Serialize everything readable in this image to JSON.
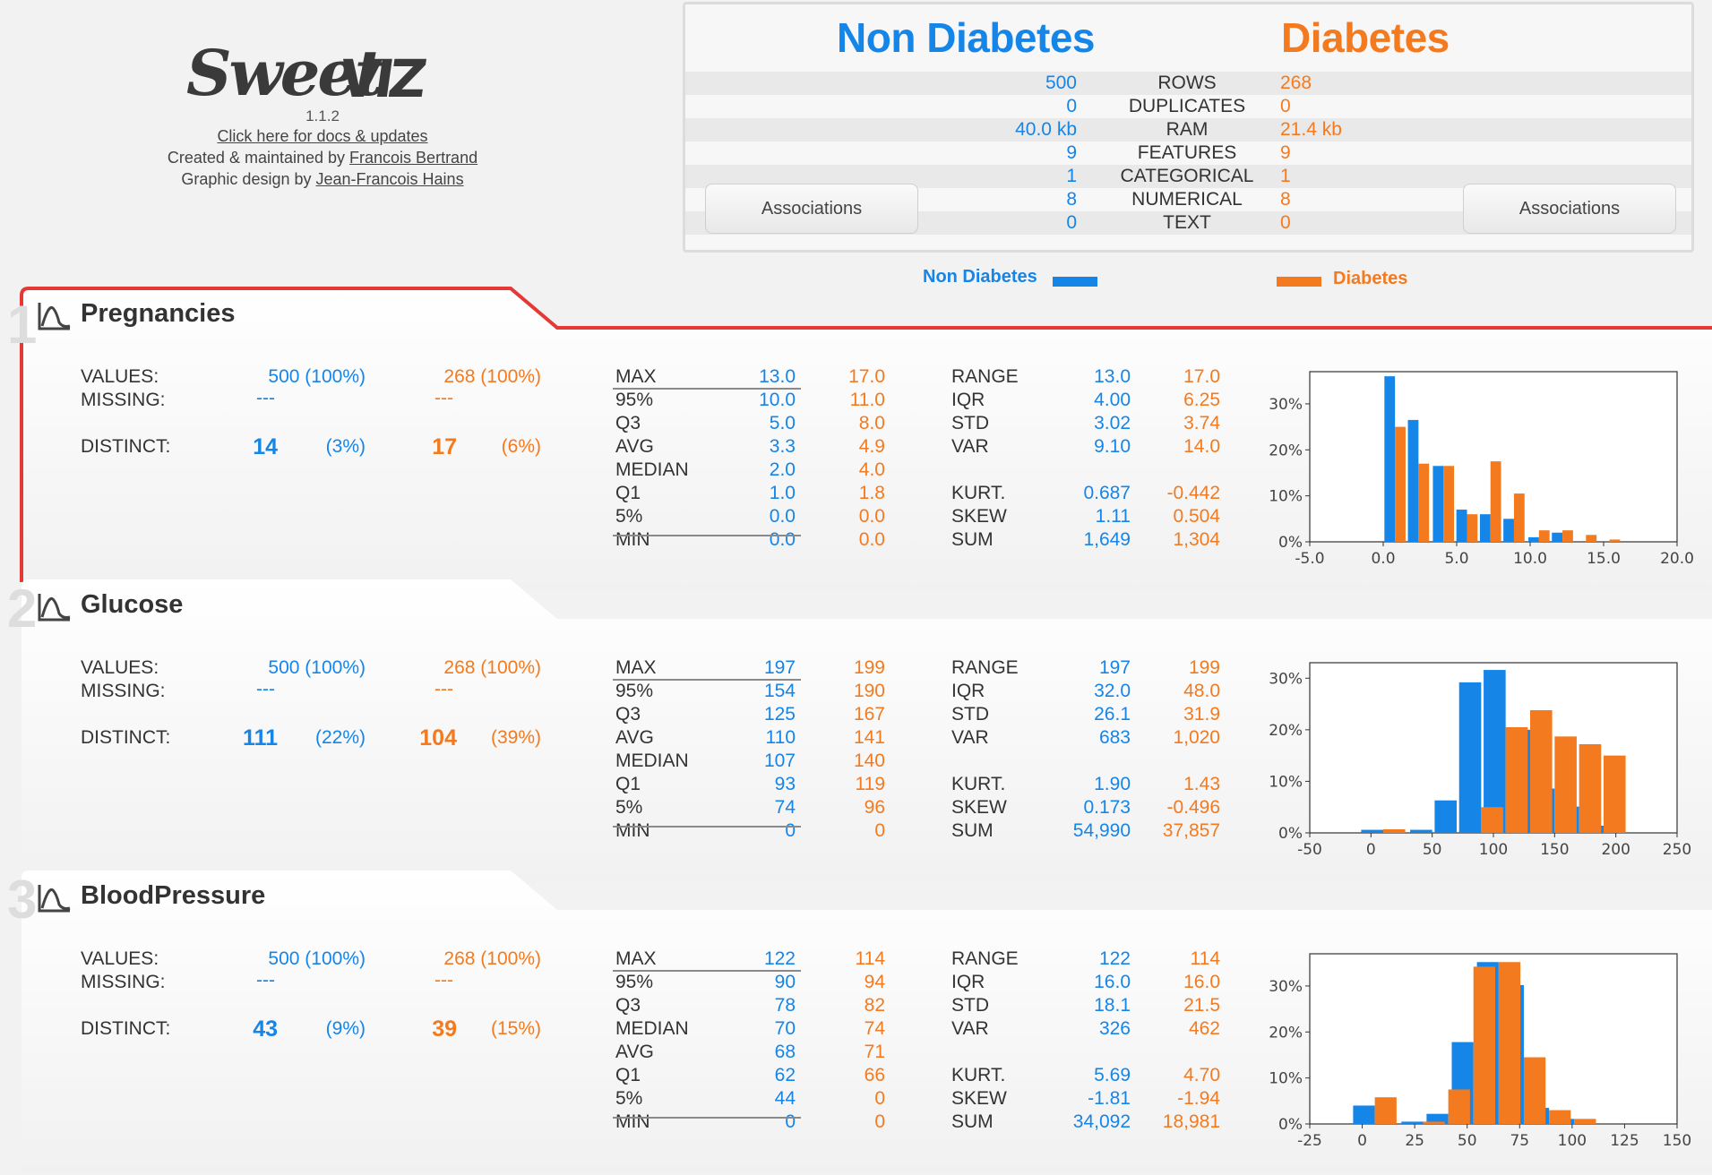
{
  "header": {
    "version": "1.1.2",
    "docs_link": "Click here for docs & updates",
    "created_prefix": "Created & maintained by ",
    "created_author": "Francois Bertrand",
    "design_prefix": "Graphic design by ",
    "design_author": "Jean-Francois Hains"
  },
  "summary": {
    "left_title": "Non Diabetes",
    "right_title": "Diabetes",
    "rows": [
      {
        "label": "ROWS",
        "left": "500",
        "right": "268"
      },
      {
        "label": "DUPLICATES",
        "left": "0",
        "right": "0"
      },
      {
        "label": "RAM",
        "left": "40.0 kb",
        "right": "21.4 kb"
      },
      {
        "label": "FEATURES",
        "left": "9",
        "right": "9"
      },
      {
        "label": "CATEGORICAL",
        "left": "1",
        "right": "1"
      },
      {
        "label": "NUMERICAL",
        "left": "8",
        "right": "8"
      },
      {
        "label": "TEXT",
        "left": "0",
        "right": "0"
      }
    ],
    "assoc_left": "Associations",
    "assoc_right": "Associations"
  },
  "legend": {
    "left": "Non Diabetes",
    "right": "Diabetes"
  },
  "colors": {
    "left": "#1585e8",
    "right": "#f47a1f",
    "highlight": "#e53935"
  },
  "features": [
    {
      "index": "1",
      "name": "Pregnancies",
      "values_label": "VALUES:",
      "missing_label": "MISSING:",
      "distinct_label": "DISTINCT:",
      "values_l": "500 (100%)",
      "values_r": "268 (100%)",
      "missing_l": "---",
      "missing_r": "---",
      "distinct_l": "14",
      "distinct_l_pct": "(3%)",
      "distinct_r": "17",
      "distinct_r_pct": "(6%)",
      "quant": [
        {
          "label": "MAX",
          "l": "13.0",
          "r": "17.0"
        },
        {
          "label": "95%",
          "l": "10.0",
          "r": "11.0"
        },
        {
          "label": "Q3",
          "l": "5.0",
          "r": "8.0"
        },
        {
          "label": "AVG",
          "l": "3.3",
          "r": "4.9"
        },
        {
          "label": "MEDIAN",
          "l": "2.0",
          "r": "4.0"
        },
        {
          "label": "Q1",
          "l": "1.0",
          "r": "1.8"
        },
        {
          "label": "5%",
          "l": "0.0",
          "r": "0.0"
        },
        {
          "label": "MIN",
          "l": "0.0",
          "r": "0.0"
        }
      ],
      "stats1": [
        {
          "label": "RANGE",
          "l": "13.0",
          "r": "17.0"
        },
        {
          "label": "IQR",
          "l": "4.00",
          "r": "6.25"
        },
        {
          "label": "STD",
          "l": "3.02",
          "r": "3.74"
        },
        {
          "label": "VAR",
          "l": "9.10",
          "r": "14.0"
        }
      ],
      "stats2": [
        {
          "label": "KURT.",
          "l": "0.687",
          "r": "-0.442"
        },
        {
          "label": "SKEW",
          "l": "1.11",
          "r": "0.504"
        },
        {
          "label": "SUM",
          "l": "1,649",
          "r": "1,304"
        }
      ]
    },
    {
      "index": "2",
      "name": "Glucose",
      "values_label": "VALUES:",
      "missing_label": "MISSING:",
      "distinct_label": "DISTINCT:",
      "values_l": "500 (100%)",
      "values_r": "268 (100%)",
      "missing_l": "---",
      "missing_r": "---",
      "distinct_l": "111",
      "distinct_l_pct": "(22%)",
      "distinct_r": "104",
      "distinct_r_pct": "(39%)",
      "quant": [
        {
          "label": "MAX",
          "l": "197",
          "r": "199"
        },
        {
          "label": "95%",
          "l": "154",
          "r": "190"
        },
        {
          "label": "Q3",
          "l": "125",
          "r": "167"
        },
        {
          "label": "AVG",
          "l": "110",
          "r": "141"
        },
        {
          "label": "MEDIAN",
          "l": "107",
          "r": "140"
        },
        {
          "label": "Q1",
          "l": "93",
          "r": "119"
        },
        {
          "label": "5%",
          "l": "74",
          "r": "96"
        },
        {
          "label": "MIN",
          "l": "0",
          "r": "0"
        }
      ],
      "stats1": [
        {
          "label": "RANGE",
          "l": "197",
          "r": "199"
        },
        {
          "label": "IQR",
          "l": "32.0",
          "r": "48.0"
        },
        {
          "label": "STD",
          "l": "26.1",
          "r": "31.9"
        },
        {
          "label": "VAR",
          "l": "683",
          "r": "1,020"
        }
      ],
      "stats2": [
        {
          "label": "KURT.",
          "l": "1.90",
          "r": "1.43"
        },
        {
          "label": "SKEW",
          "l": "0.173",
          "r": "-0.496"
        },
        {
          "label": "SUM",
          "l": "54,990",
          "r": "37,857"
        }
      ]
    },
    {
      "index": "3",
      "name": "BloodPressure",
      "values_label": "VALUES:",
      "missing_label": "MISSING:",
      "distinct_label": "DISTINCT:",
      "values_l": "500 (100%)",
      "values_r": "268 (100%)",
      "missing_l": "---",
      "missing_r": "---",
      "distinct_l": "43",
      "distinct_l_pct": "(9%)",
      "distinct_r": "39",
      "distinct_r_pct": "(15%)",
      "quant": [
        {
          "label": "MAX",
          "l": "122",
          "r": "114"
        },
        {
          "label": "95%",
          "l": "90",
          "r": "94"
        },
        {
          "label": "Q3",
          "l": "78",
          "r": "82"
        },
        {
          "label": "MEDIAN",
          "l": "70",
          "r": "74"
        },
        {
          "label": "AVG",
          "l": "68",
          "r": "71"
        },
        {
          "label": "Q1",
          "l": "62",
          "r": "66"
        },
        {
          "label": "5%",
          "l": "44",
          "r": "0"
        },
        {
          "label": "MIN",
          "l": "0",
          "r": "0"
        }
      ],
      "stats1": [
        {
          "label": "RANGE",
          "l": "122",
          "r": "114"
        },
        {
          "label": "IQR",
          "l": "16.0",
          "r": "16.0"
        },
        {
          "label": "STD",
          "l": "18.1",
          "r": "21.5"
        },
        {
          "label": "VAR",
          "l": "326",
          "r": "462"
        }
      ],
      "stats2": [
        {
          "label": "KURT.",
          "l": "5.69",
          "r": "4.70"
        },
        {
          "label": "SKEW",
          "l": "-1.81",
          "r": "-1.94"
        },
        {
          "label": "SUM",
          "l": "34,092",
          "r": "18,981"
        }
      ]
    }
  ],
  "chart_data": [
    {
      "type": "bar",
      "title": "Pregnancies",
      "xlim": [
        -5,
        20
      ],
      "ylim": [
        0,
        37
      ],
      "xticks": [
        "-5.0",
        "0.0",
        "5.0",
        "10.0",
        "15.0",
        "20.0"
      ],
      "yticks": [
        "0%",
        "10%",
        "20%",
        "30%"
      ],
      "bin_centers": [
        0.8,
        2.4,
        4.1,
        5.7,
        7.3,
        8.9,
        10.6,
        12.2,
        13.8,
        15.4,
        17.0
      ],
      "series": [
        {
          "name": "Non Diabetes",
          "values": [
            36,
            26.5,
            16.5,
            7,
            6,
            5,
            1,
            2,
            0,
            0,
            0
          ]
        },
        {
          "name": "Diabetes",
          "values": [
            25,
            17,
            16.5,
            6,
            17.5,
            10.5,
            2.5,
            2.5,
            1.5,
            0.5,
            0
          ]
        }
      ]
    },
    {
      "type": "bar",
      "title": "Glucose",
      "xlim": [
        -50,
        250
      ],
      "ylim": [
        0,
        33
      ],
      "xticks": [
        "-50",
        "0",
        "50",
        "100",
        "150",
        "200",
        "250"
      ],
      "yticks": [
        "0%",
        "10%",
        "20%",
        "30%"
      ],
      "bin_centers": [
        10,
        50,
        70,
        90,
        110,
        130,
        150,
        170,
        190
      ],
      "series": [
        {
          "name": "Non Diabetes",
          "values": [
            0.6,
            0.6,
            6.3,
            29.2,
            31.6,
            20.0,
            8.6,
            5.1,
            1.4
          ]
        },
        {
          "name": "Diabetes",
          "values": [
            0.7,
            0,
            0,
            5,
            20.5,
            23.8,
            18.7,
            17.2,
            15.0
          ]
        }
      ]
    },
    {
      "type": "bar",
      "title": "BloodPressure",
      "xlim": [
        -25,
        150
      ],
      "ylim": [
        0,
        37
      ],
      "xticks": [
        "-25",
        "0",
        "25",
        "50",
        "75",
        "100",
        "125",
        "150"
      ],
      "yticks": [
        "0%",
        "10%",
        "20%",
        "30%"
      ],
      "bin_centers": [
        6,
        29,
        41,
        53,
        65,
        77,
        89,
        101,
        113
      ],
      "series": [
        {
          "name": "Non Diabetes",
          "values": [
            4,
            0.5,
            2.2,
            17.8,
            35.2,
            30.2,
            3.5,
            1.1,
            0
          ]
        },
        {
          "name": "Diabetes",
          "values": [
            5.8,
            0.5,
            7.5,
            34.2,
            35.2,
            14.5,
            3,
            1.1,
            0
          ]
        }
      ]
    }
  ]
}
